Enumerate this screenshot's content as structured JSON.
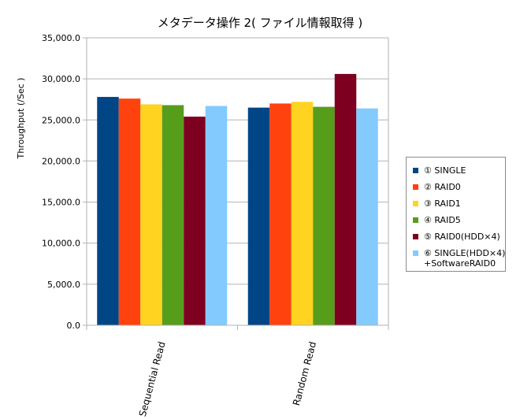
{
  "chart_data": {
    "type": "bar",
    "title": "メタデータ操作 2( ファイル情報取得 )",
    "xlabel": "",
    "ylabel": "Throughput (/Sec )",
    "ylim": [
      0,
      35000
    ],
    "yticks": [
      0,
      5000,
      10000,
      15000,
      20000,
      25000,
      30000,
      35000
    ],
    "ytick_labels": [
      "0.0",
      "5,000.0",
      "10,000.0",
      "15,000.0",
      "20,000.0",
      "25,000.0",
      "30,000.0",
      "35,000.0"
    ],
    "categories": [
      "Sequential Read",
      "Random Read"
    ],
    "grid": true,
    "legend_position": "right",
    "series": [
      {
        "name": "① SINGLE",
        "color": "#004586",
        "values": [
          27800,
          26500
        ]
      },
      {
        "name": "② RAID0",
        "color": "#ff420e",
        "values": [
          27600,
          27000
        ]
      },
      {
        "name": "③ RAID1",
        "color": "#ffd320",
        "values": [
          26900,
          27200
        ]
      },
      {
        "name": "④ RAID5",
        "color": "#579d1c",
        "values": [
          26800,
          26600
        ]
      },
      {
        "name": "⑤ RAID0(HDD×4)",
        "color": "#7e0021",
        "values": [
          25400,
          30600
        ]
      },
      {
        "name": "⑥ SINGLE(HDD×4)\n+SoftwareRAID0",
        "color": "#83caff",
        "values": [
          26700,
          26400
        ]
      }
    ]
  }
}
